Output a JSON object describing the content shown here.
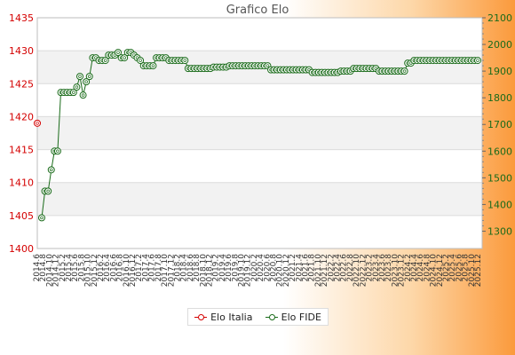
{
  "chart_data": {
    "type": "line",
    "title": "Grafico Elo",
    "legend": {
      "position": "bottom-center"
    },
    "grid": true,
    "y_left": {
      "ticks": [
        1400,
        1405,
        1410,
        1415,
        1420,
        1425,
        1430,
        1435
      ],
      "range": [
        1400,
        1435
      ],
      "color": "#d40000"
    },
    "y_right": {
      "ticks": [
        1300,
        1400,
        1500,
        1600,
        1700,
        1800,
        1900,
        2000,
        2100
      ],
      "range": [
        1235,
        2100
      ],
      "color": "#1a6b1a"
    },
    "series": [
      {
        "name": "Elo Italia",
        "axis": "left",
        "color": "#d40000",
        "values": [
          1419
        ]
      },
      {
        "name": "Elo FIDE",
        "axis": "right",
        "color": "#1a6b1a",
        "values": [
          1350,
          1450,
          1450,
          1530,
          1600,
          1600,
          1820,
          1820,
          1820,
          1820,
          1820,
          1840,
          1880,
          1810,
          1860,
          1880,
          1950,
          1950,
          1940,
          1940,
          1940,
          1960,
          1960,
          1960,
          1970,
          1950,
          1950,
          1970,
          1970,
          1960,
          1950,
          1940,
          1920,
          1920,
          1920,
          1920,
          1950,
          1950,
          1950,
          1950,
          1940,
          1940,
          1940,
          1940,
          1940,
          1940,
          1910,
          1910,
          1910,
          1910,
          1910,
          1910,
          1910,
          1910,
          1915,
          1915,
          1915,
          1915,
          1915,
          1920,
          1920,
          1920,
          1920,
          1920,
          1920,
          1920,
          1920,
          1920,
          1920,
          1920,
          1920,
          1920,
          1905,
          1905,
          1905,
          1905,
          1905,
          1905,
          1905,
          1905,
          1905,
          1905,
          1905,
          1905,
          1905,
          1895,
          1895,
          1895,
          1895,
          1895,
          1895,
          1895,
          1895,
          1895,
          1900,
          1900,
          1900,
          1900,
          1910,
          1910,
          1910,
          1910,
          1910,
          1910,
          1910,
          1910,
          1900,
          1900,
          1900,
          1900,
          1900,
          1900,
          1900,
          1900,
          1900,
          1930,
          1930,
          1940,
          1940,
          1940,
          1940,
          1940,
          1940,
          1940,
          1940,
          1940,
          1940,
          1940,
          1940,
          1940,
          1940,
          1940,
          1940,
          1940,
          1940,
          1940,
          1940,
          1940
        ]
      }
    ],
    "x_ticks": [
      "2014.6",
      "2014.8",
      "2014.10",
      "2014.12",
      "2015.2",
      "2015.4",
      "2015.6",
      "2015.8",
      "2015.10",
      "2015.12",
      "2016.2",
      "2016.4",
      "2016.6",
      "2016.8",
      "2016.10",
      "2016.12",
      "2017.2",
      "2017.4",
      "2017.6",
      "2017.8",
      "2017.10",
      "2017.12",
      "2018.2",
      "2018.4",
      "2018.6",
      "2018.8",
      "2018.10",
      "2018.12",
      "2019.2",
      "2019.4",
      "2019.6",
      "2019.8",
      "2019.10",
      "2019.12",
      "2020.2",
      "2020.4",
      "2020.6",
      "2020.8",
      "2020.10",
      "2020.12",
      "2021.2",
      "2021.4",
      "2021.6",
      "2021.8",
      "2021.10",
      "2021.12",
      "2022.2",
      "2022.4",
      "2022.6",
      "2022.8",
      "2022.10",
      "2022.12",
      "2023.2",
      "2023.4",
      "2023.6",
      "2023.8",
      "2023.10",
      "2023.12",
      "2024.2",
      "2024.4",
      "2024.6",
      "2024.8",
      "2024.10",
      "2024.12",
      "2025.2",
      "2025.4",
      "2025.6",
      "2025.8",
      "2025.10",
      "2025.12"
    ]
  }
}
